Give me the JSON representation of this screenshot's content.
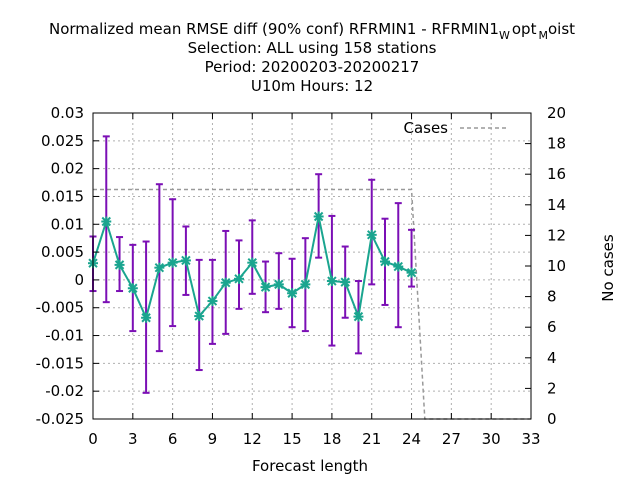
{
  "chart_data": {
    "type": "line",
    "title_lines": [
      "Normalized mean RMSE diff (90% conf) RFRMIN1 - RFRMIN1",
      "Selection: ALL using   158 stations",
      "Period: 20200203-20200217",
      "U10m   Hours:  12"
    ],
    "title_suffix": {
      "w": "W",
      "opt": "opt",
      "m": "M",
      "oist": "oist"
    },
    "xlabel": "Forecast length",
    "ylabel_right": "No cases",
    "xlim": [
      0,
      33
    ],
    "ylim": [
      -0.025,
      0.03
    ],
    "y2lim": [
      0,
      20
    ],
    "x_ticks": [
      0,
      3,
      6,
      9,
      12,
      15,
      18,
      21,
      24,
      27,
      30,
      33
    ],
    "y_ticks": [
      "0.03",
      "0.025",
      "0.02",
      "0.015",
      "0.01",
      "0.005",
      "0",
      "-0.005",
      "-0.01",
      "-0.015",
      "-0.02",
      "-0.025"
    ],
    "y2_ticks": [
      "20",
      "18",
      "16",
      "14",
      "12",
      "10",
      "8",
      "6",
      "4",
      "2",
      "0"
    ],
    "grid": true,
    "legend": {
      "placement": "top-right",
      "entry": "Cases"
    },
    "series": [
      {
        "x": [
          0,
          1,
          2,
          3,
          4,
          5,
          6,
          7,
          8,
          9,
          10,
          11,
          12,
          13,
          14,
          15,
          16,
          17,
          18,
          19,
          20,
          21,
          22,
          23,
          24
        ],
        "y": [
          0.003,
          0.0105,
          0.0027,
          -0.0015,
          -0.0068,
          0.0022,
          0.0031,
          0.0035,
          -0.0065,
          -0.0038,
          -0.0005,
          0.0002,
          0.0031,
          -0.0013,
          -0.0008,
          -0.0024,
          -0.0008,
          0.0114,
          -0.0002,
          -0.0004,
          -0.0066,
          0.0081,
          0.0033,
          0.0024,
          0.0013
        ],
        "err_low": [
          -0.002,
          -0.004,
          -0.002,
          -0.0092,
          -0.0203,
          -0.0128,
          -0.0083,
          -0.0027,
          -0.0162,
          -0.0115,
          -0.0097,
          -0.0052,
          -0.0025,
          -0.0058,
          -0.0052,
          -0.0085,
          -0.0092,
          0.004,
          -0.0118,
          -0.0068,
          -0.0132,
          -0.0008,
          -0.0045,
          -0.0085,
          -0.0012
        ],
        "err_high": [
          0.0078,
          0.0258,
          0.0077,
          0.0063,
          0.0069,
          0.0172,
          0.0145,
          0.0096,
          0.0036,
          0.0036,
          0.0088,
          0.0071,
          0.0107,
          0.0033,
          0.0048,
          0.0038,
          0.0075,
          0.019,
          0.0115,
          0.006,
          -0.0002,
          0.018,
          0.011,
          0.0138,
          0.009
        ],
        "line_color": "#1aa58f",
        "errorbar_color": "#7b0fb5"
      },
      {
        "name": "Cases",
        "axis": "y2",
        "style": "dashed",
        "color": "#999999",
        "x": [
          0,
          24,
          25,
          33
        ],
        "y": [
          15,
          15,
          0,
          0
        ]
      }
    ]
  }
}
